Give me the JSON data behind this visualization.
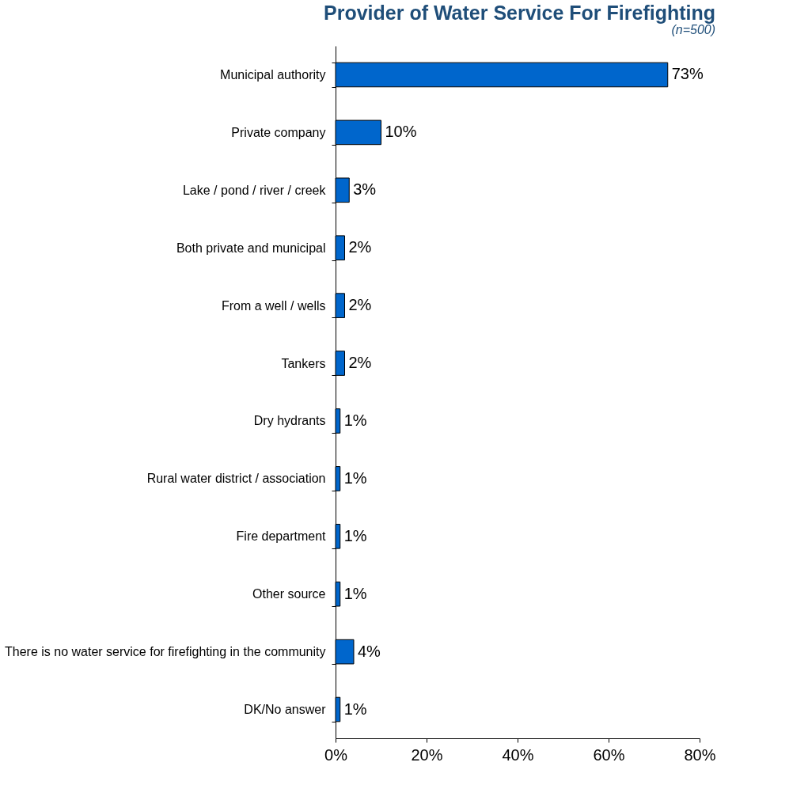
{
  "chart_data": {
    "type": "bar",
    "orientation": "horizontal",
    "title": "Provider of Water Service For Firefighting",
    "subtitle": "(n=500)",
    "categories": [
      "Municipal authority",
      "Private company",
      "Lake / pond / river / creek",
      "Both private and municipal",
      "From a well / wells",
      "Tankers",
      "Dry hydrants",
      "Rural water district / association",
      "Fire department",
      "Other source",
      "There is no water service for firefighting in the community",
      "DK/No answer"
    ],
    "values": [
      73,
      10,
      3,
      2,
      2,
      2,
      1,
      1,
      1,
      1,
      4,
      1
    ],
    "value_labels": [
      "73%",
      "10%",
      "3%",
      "2%",
      "2%",
      "2%",
      "1%",
      "1%",
      "1%",
      "1%",
      "4%",
      "1%"
    ],
    "color": "#0066cc",
    "xlim": [
      0,
      80
    ],
    "xticks": [
      {
        "value": 0,
        "label": "0%"
      },
      {
        "value": 20,
        "label": "20%"
      },
      {
        "value": 40,
        "label": "40%"
      },
      {
        "value": 60,
        "label": "60%"
      },
      {
        "value": 80,
        "label": "80%"
      }
    ],
    "grid": false
  }
}
